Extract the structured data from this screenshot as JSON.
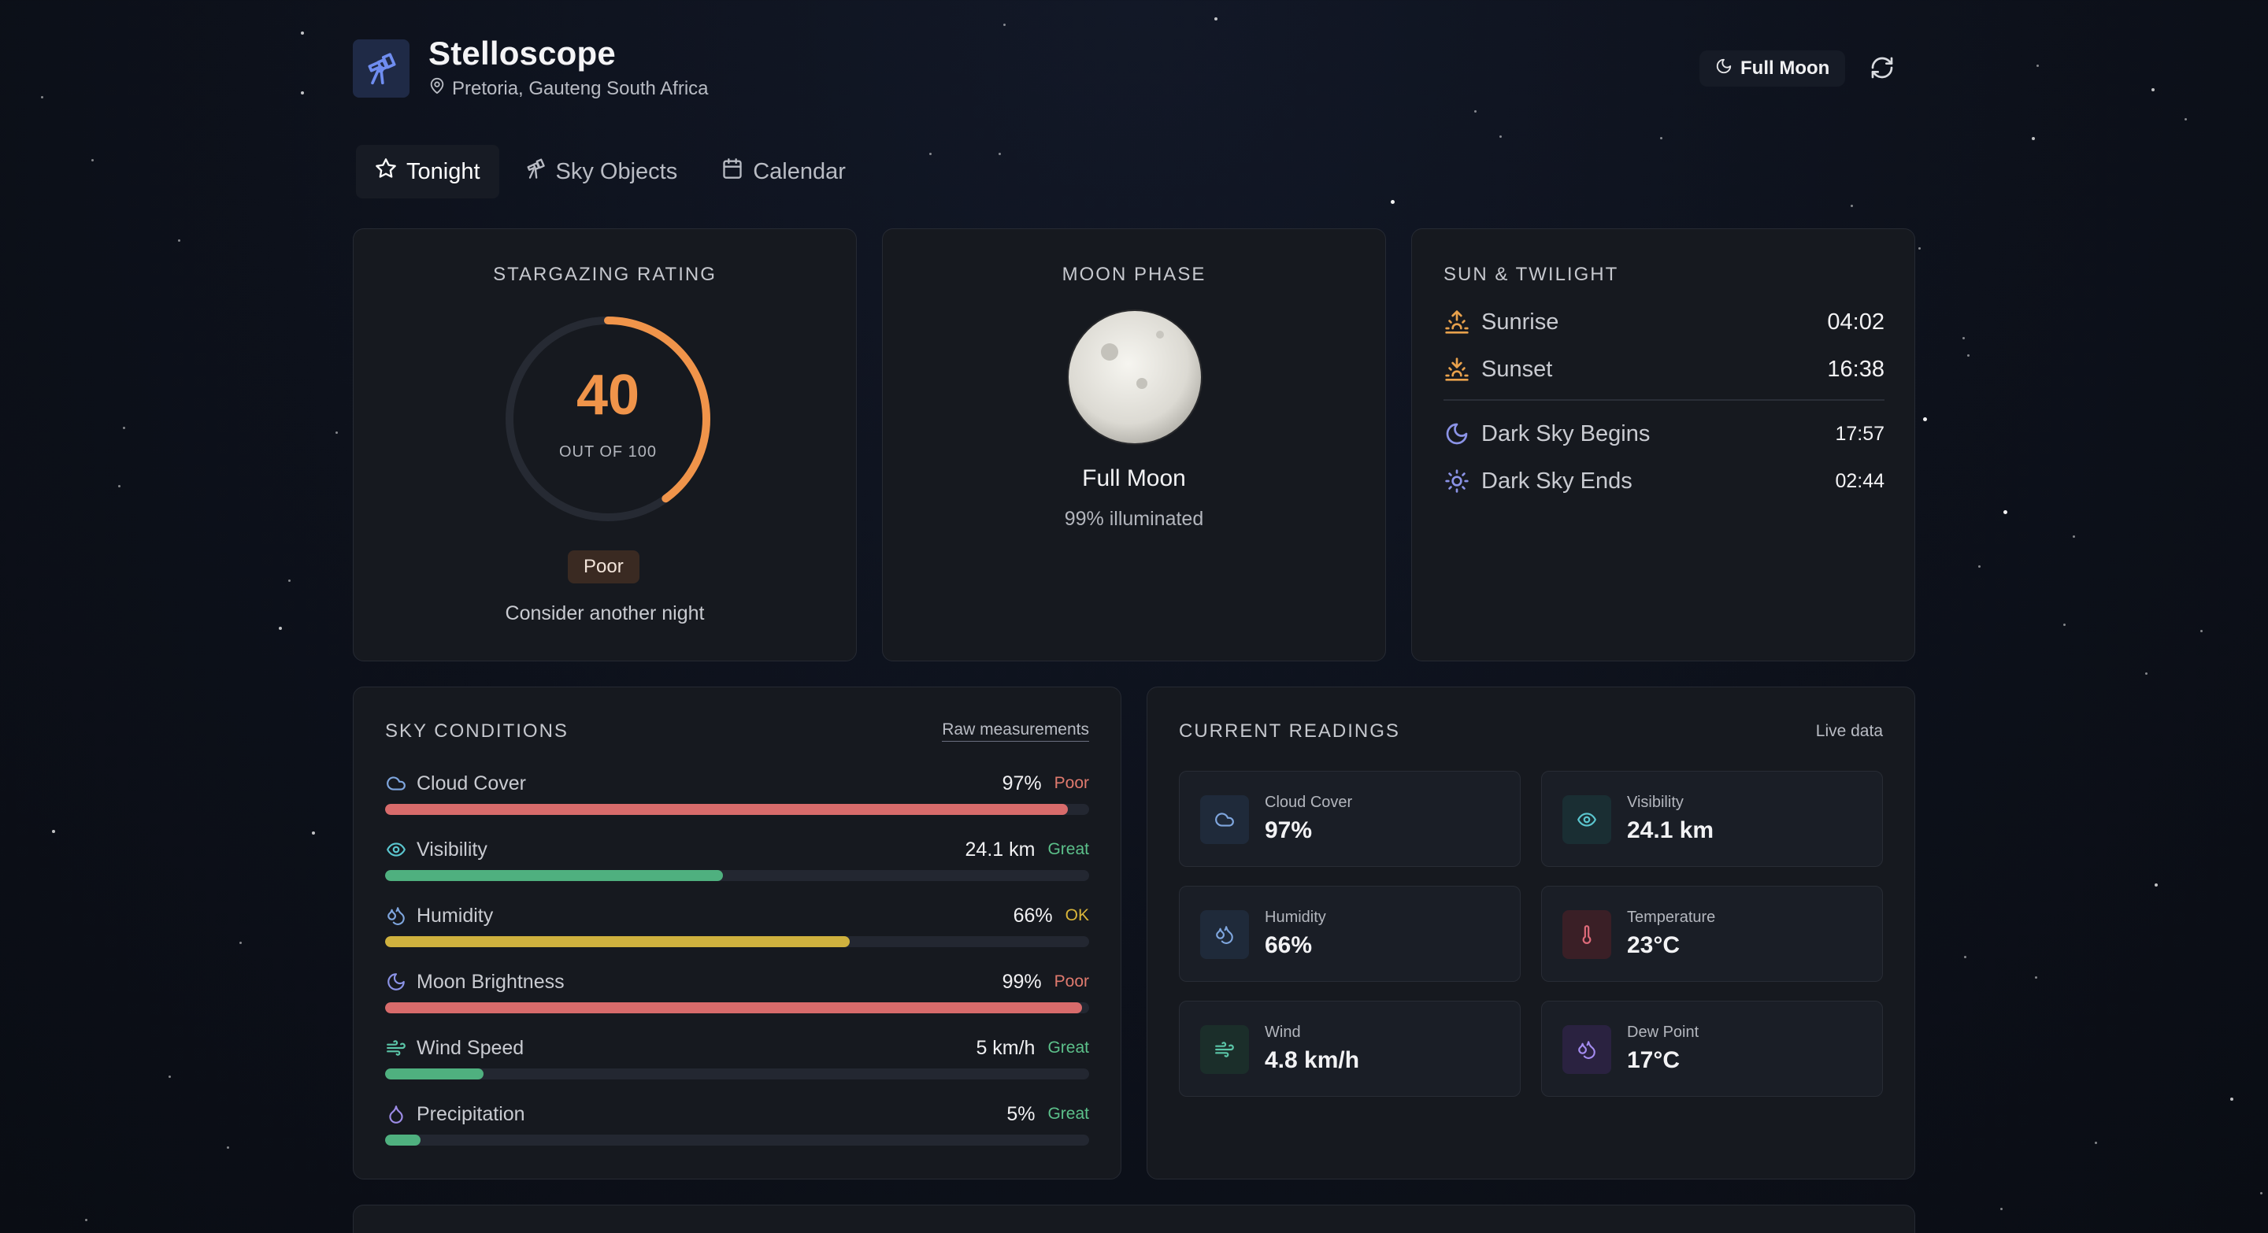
{
  "app": {
    "title": "Stelloscope",
    "location": "Pretoria, Gauteng South Africa",
    "moon_pill_label": "Full Moon",
    "icons": {
      "logo": "telescope-icon",
      "location": "map-pin-icon",
      "refresh": "refresh-icon",
      "moon": "moon-icon"
    }
  },
  "tabs": [
    {
      "label": "Tonight",
      "icon": "star-icon",
      "active": true
    },
    {
      "label": "Sky Objects",
      "icon": "telescope-icon",
      "active": false
    },
    {
      "label": "Calendar",
      "icon": "calendar-icon",
      "active": false
    }
  ],
  "rating": {
    "title": "Stargazing Rating",
    "value": "40",
    "max_label": "OUT OF 100",
    "score_fraction": 0.4,
    "badge": "Poor",
    "note": "Consider another night",
    "color": "#f0944a"
  },
  "moon": {
    "title": "Moon Phase",
    "phase_name": "Full Moon",
    "illumination": "99% illuminated"
  },
  "sun": {
    "title": "Sun & Twilight",
    "rows": [
      {
        "label": "Sunrise",
        "value": "04:02",
        "icon": "sunrise-icon"
      },
      {
        "label": "Sunset",
        "value": "16:38",
        "icon": "sunset-icon"
      },
      {
        "label": "Dark Sky Begins",
        "value": "17:57",
        "icon": "moon-icon"
      },
      {
        "label": "Dark Sky Ends",
        "value": "02:44",
        "icon": "sun-icon"
      }
    ]
  },
  "sky": {
    "title": "Sky Conditions",
    "link": "Raw measurements",
    "conditions": [
      {
        "name": "Cloud Cover",
        "value": "97%",
        "rating": "Poor",
        "level": 0.97,
        "icon": "cloud-icon",
        "color": "#d86b6b",
        "rate_color": "#e07a6e"
      },
      {
        "name": "Visibility",
        "value": "24.1 km",
        "rating": "Great",
        "level": 0.48,
        "icon": "eye-icon",
        "color": "#4fb07f",
        "rate_color": "#5cc08a"
      },
      {
        "name": "Humidity",
        "value": "66%",
        "rating": "OK",
        "level": 0.66,
        "icon": "droplets-icon",
        "color": "#cfb13e",
        "rate_color": "#d9b53a"
      },
      {
        "name": "Moon Brightness",
        "value": "99%",
        "rating": "Poor",
        "level": 0.99,
        "icon": "moon-icon",
        "color": "#d86b6b",
        "rate_color": "#e07a6e"
      },
      {
        "name": "Wind Speed",
        "value": "5 km/h",
        "rating": "Great",
        "level": 0.14,
        "icon": "wind-icon",
        "color": "#4fb07f",
        "rate_color": "#5cc08a"
      },
      {
        "name": "Precipitation",
        "value": "5%",
        "rating": "Great",
        "level": 0.05,
        "icon": "droplet-icon",
        "color": "#4fb07f",
        "rate_color": "#5cc08a"
      }
    ]
  },
  "readings": {
    "title": "Current Readings",
    "badge": "Live data",
    "tiles": [
      {
        "label": "Cloud Cover",
        "value": "97%",
        "icon": "cloud-icon"
      },
      {
        "label": "Visibility",
        "value": "24.1 km",
        "icon": "eye-icon"
      },
      {
        "label": "Humidity",
        "value": "66%",
        "icon": "droplets-icon"
      },
      {
        "label": "Temperature",
        "value": "23°C",
        "icon": "thermometer-icon"
      },
      {
        "label": "Wind",
        "value": "4.8 km/h",
        "icon": "wind-icon"
      },
      {
        "label": "Dew Point",
        "value": "17°C",
        "icon": "dew-point-icon"
      }
    ]
  }
}
